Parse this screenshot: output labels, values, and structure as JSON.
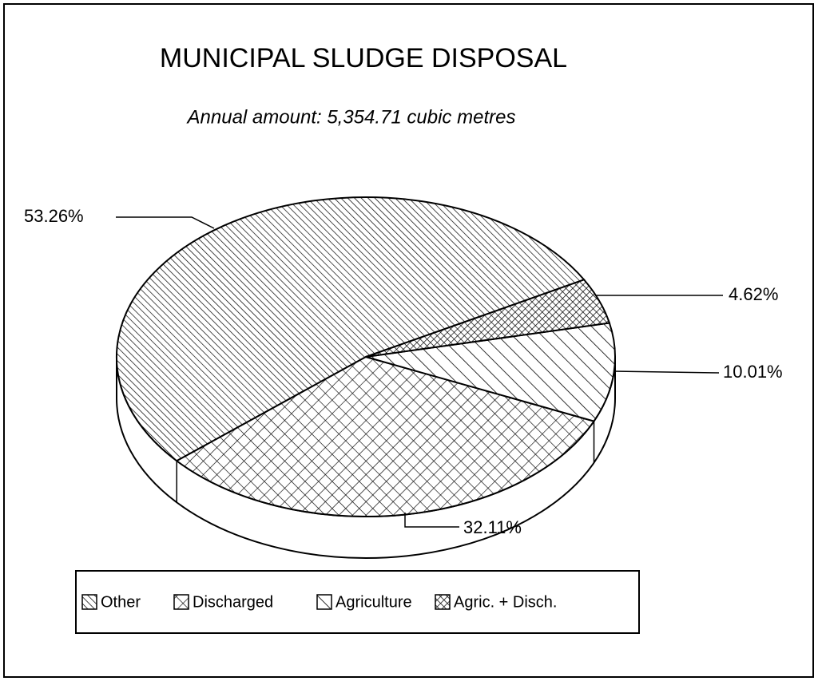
{
  "chart_data": {
    "type": "pie",
    "title": "MUNICIPAL SLUDGE DISPOSAL",
    "subtitle": "Annual amount: 5,354.71 cubic metres",
    "categories": [
      "Other",
      "Discharged",
      "Agriculture",
      "Agric. + Disch."
    ],
    "values": [
      53.26,
      32.11,
      10.01,
      4.62
    ],
    "value_labels": [
      "53.26%",
      "32.11%",
      "10.01%",
      "4.62%"
    ],
    "color": "#000000",
    "legend": "bottom"
  }
}
